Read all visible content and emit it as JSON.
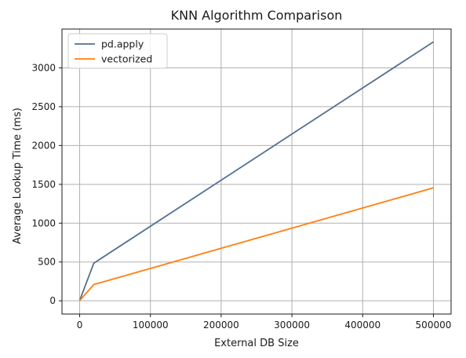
{
  "chart_data": {
    "type": "line",
    "title": "KNN Algorithm Comparison",
    "xlabel": "External DB Size",
    "ylabel": "Average Lookup Time (ms)",
    "xlim": [
      -25000,
      525000
    ],
    "ylim": [
      -170,
      3500
    ],
    "xticks": [
      0,
      100000,
      200000,
      300000,
      400000,
      500000
    ],
    "xtick_labels": [
      "0",
      "100000",
      "200000",
      "300000",
      "400000",
      "500000"
    ],
    "yticks": [
      0,
      500,
      1000,
      1500,
      2000,
      2500,
      3000
    ],
    "ytick_labels": [
      "0",
      "500",
      "1000",
      "1500",
      "2000",
      "2500",
      "3000"
    ],
    "grid": true,
    "legend_position": "top-left",
    "series": [
      {
        "name": "pd.apply",
        "color": "#51718f",
        "x": [
          0,
          20000,
          500000
        ],
        "y": [
          5,
          485,
          3335
        ]
      },
      {
        "name": "vectorized",
        "color": "#ff7f0e",
        "x": [
          0,
          20000,
          500000
        ],
        "y": [
          3,
          210,
          1455
        ]
      }
    ]
  }
}
